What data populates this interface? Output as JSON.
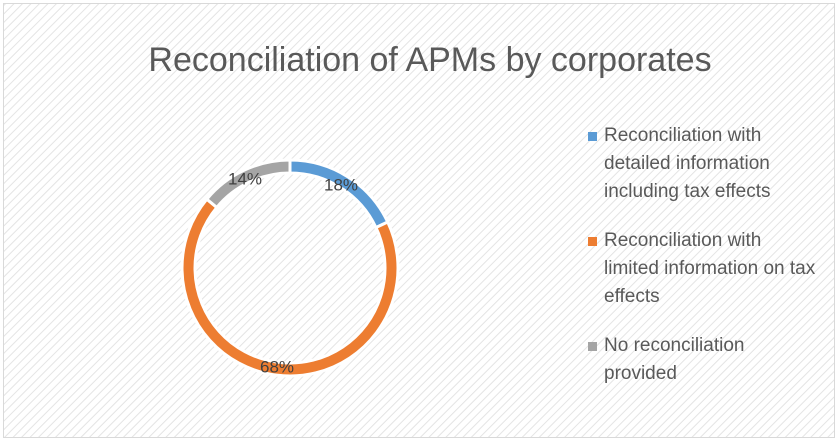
{
  "chart_data": {
    "type": "pie",
    "title": "Reconciliation of APMs by corporates",
    "categories": [
      "Reconciliation with detailed information including tax effects",
      "Reconciliation with limited information on tax effects",
      "No reconciliation provided"
    ],
    "values": [
      18,
      68,
      14
    ],
    "value_labels": [
      "18%",
      "68%",
      "14%"
    ],
    "colors": [
      "#5b9bd5",
      "#ed7d31",
      "#a5a5a5"
    ],
    "legend": "right"
  }
}
